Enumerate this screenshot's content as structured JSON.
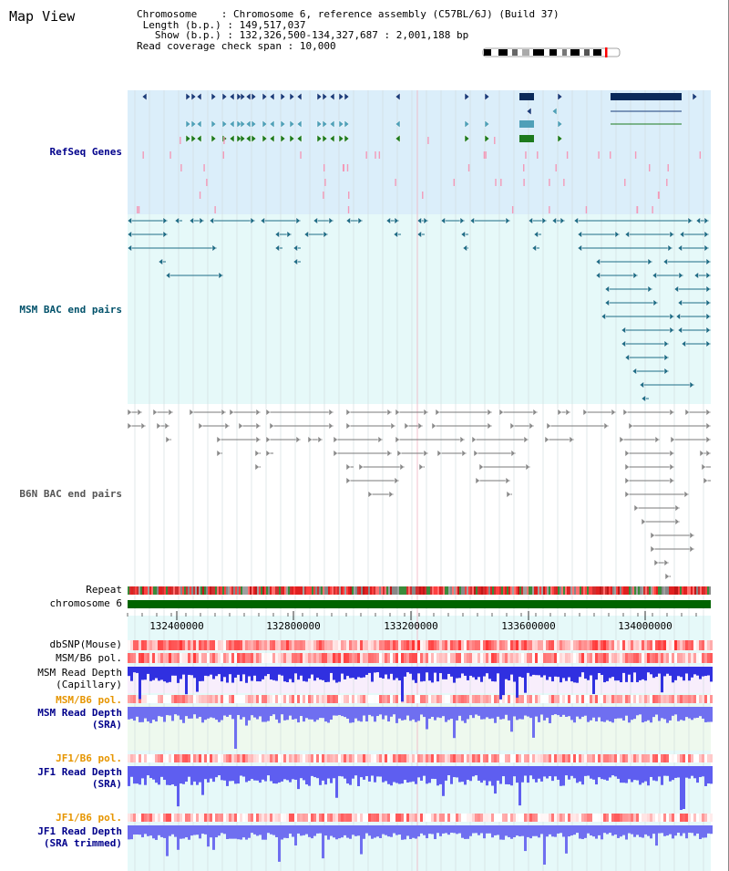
{
  "page": {
    "title": "Map View"
  },
  "info": {
    "chromosome_key": "Chromosome",
    "chromosome_val": "Chromosome 6, reference assembly (C57BL/6J) (Build 37)",
    "length_key": "Length (b.p.)",
    "length_val": "149,517,037",
    "show_key": "Show (b.p.)",
    "show_val": "132,326,500-134,327,687 : 2,001,188 bp",
    "span_key": "Read coverage check span",
    "span_val": "10,000"
  },
  "tracks": {
    "refseq": "RefSeq Genes",
    "msm_bac": "MSM BAC end pairs",
    "b6n_bac": "B6N BAC end pairs",
    "repeat": "Repeat",
    "chromosome": "chromosome 6",
    "dbsnp": "dbSNP(Mouse)",
    "msm_b6_pol": "MSM/B6 pol.",
    "msm_depth_cap_1": "MSM Read Depth",
    "msm_depth_cap_2": "(Capillary)",
    "msm_b6_pol_2": "MSM/B6 pol.",
    "msm_depth_sra_1": "MSM Read Depth",
    "msm_depth_sra_2": "(SRA)",
    "jf1_b6_pol": "JF1/B6 pol.",
    "jf1_depth_sra_1": "JF1 Read Depth",
    "jf1_depth_sra_2": "(SRA)",
    "jf1_b6_pol_2": "JF1/B6 pol.",
    "jf1_depth_trim_1": "JF1 Read Depth",
    "jf1_depth_trim_2": "(SRA trimmed)"
  },
  "axis": {
    "ticks": [
      "132400000",
      "132800000",
      "133200000",
      "133600000",
      "134000000"
    ]
  },
  "colors": {
    "refseq_bg": "#dbeefa",
    "msm_bg": "#e6f9f9",
    "label_blue": "#00008b",
    "label_teal": "#00516a",
    "label_orange": "#e69500",
    "chromosome_green": "#006400",
    "depth_blue": "#2020e0"
  }
}
